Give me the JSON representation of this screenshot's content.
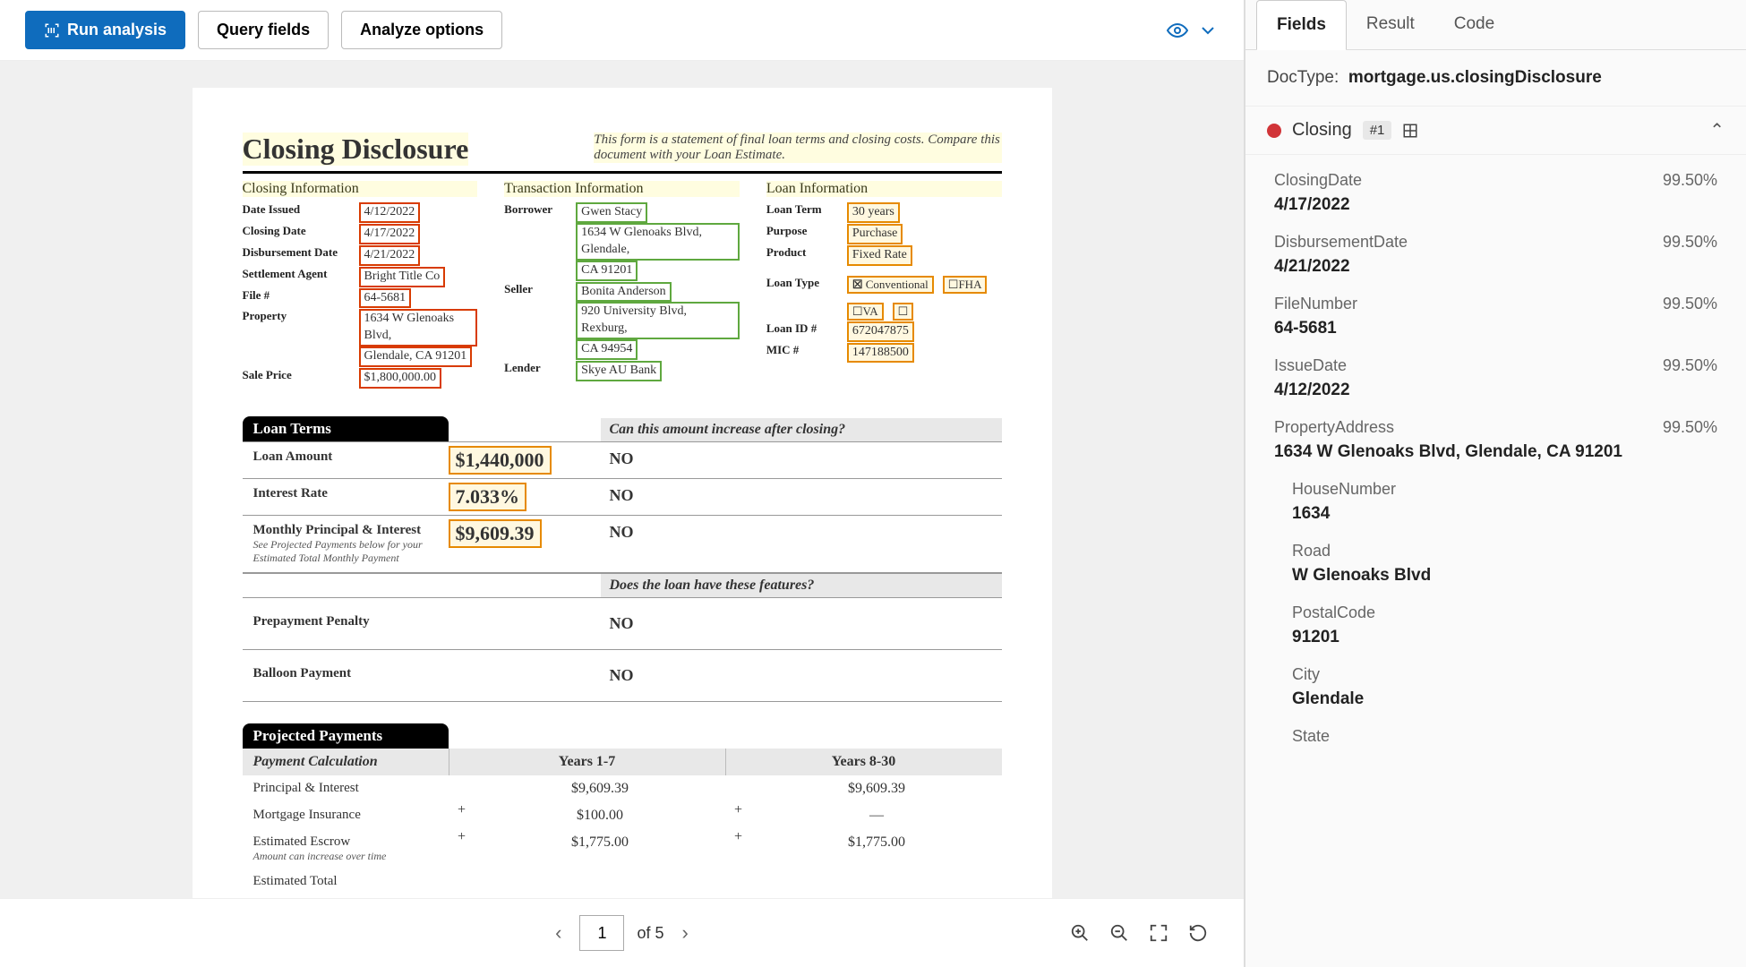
{
  "toolbar": {
    "run": "Run analysis",
    "query": "Query fields",
    "analyze": "Analyze options"
  },
  "doc": {
    "title": "Closing Disclosure",
    "subtitle": "This form is a statement of final loan terms and closing costs. Compare this document with your Loan Estimate.",
    "sections": {
      "closing": {
        "head": "Closing  Information",
        "date_issued_l": "Date Issued",
        "date_issued": "4/12/2022",
        "closing_date_l": "Closing Date",
        "closing_date": "4/17/2022",
        "disb_date_l": "Disbursement Date",
        "disb_date": "4/21/2022",
        "agent_l": "Settlement Agent",
        "agent": "Bright  Title Co",
        "file_l": "File #",
        "file": "64-5681",
        "property_l": "Property",
        "property1": "1634 W Glenoaks Blvd,",
        "property2": "Glendale, CA 91201",
        "sale_l": "Sale Price",
        "sale": "$1,800,000.00"
      },
      "transaction": {
        "head": "Transaction  Information",
        "borrower_l": "Borrower",
        "borrower": "Gwen Stacy",
        "borrower_addr1": "1634 W Glenoaks Blvd, Glendale,",
        "borrower_addr2": "CA 91201",
        "seller_l": "Seller",
        "seller": "Bonita Anderson",
        "seller_addr1": "920 University Blvd, Rexburg,",
        "seller_addr2": "CA 94954",
        "lender_l": "Lender",
        "lender": "Skye AU Bank"
      },
      "loan": {
        "head": "Loan  Information",
        "term_l": "Loan Term",
        "term": "30 years",
        "purpose_l": "Purpose",
        "purpose": "Purchase",
        "product_l": "Product",
        "product": "Fixed Rate",
        "type_l": "Loan Type",
        "type_conv": "Conventional",
        "type_fha": "FHA",
        "type_va": "VA",
        "id_l": "Loan ID #",
        "id": "672047875",
        "mic_l": "MIC #",
        "mic": "147188500"
      }
    },
    "loanterms": {
      "head": "Loan Terms",
      "q": "Can this amount increase after closing?",
      "rows": [
        {
          "label": "Loan Amount",
          "val": "$1,440,000",
          "ans": "NO"
        },
        {
          "label": "Interest Rate",
          "val": "7.033%",
          "ans": "NO"
        },
        {
          "label": "Monthly Principal & Interest",
          "sub": "See Projected Payments below for your Estimated Total Monthly Payment",
          "val": "$9,609.39",
          "ans": "NO"
        }
      ],
      "q2": "Does the loan have these features?",
      "rows2": [
        {
          "label": "Prepayment Penalty",
          "ans": "NO"
        },
        {
          "label": "Balloon Payment",
          "ans": "NO"
        }
      ]
    },
    "projected": {
      "head": "Projected Payments",
      "calc": "Payment Calculation",
      "col1": "Years 1-7",
      "col2": "Years 8-30",
      "rows": [
        {
          "label": "Principal & Interest",
          "v1": "$9,609.39",
          "v2": "$9,609.39",
          "plus": ""
        },
        {
          "label": "Mortgage Insurance",
          "v1": "$100.00",
          "v2": "—",
          "plus": "+"
        },
        {
          "label": "Estimated Escrow",
          "sub": "Amount can increase over time",
          "v1": "$1,775.00",
          "v2": "$1,775.00",
          "plus": "+"
        },
        {
          "label": "Estimated Total",
          "v1": "",
          "v2": "",
          "plus": ""
        }
      ]
    }
  },
  "pager": {
    "page": "1",
    "total": "of 5"
  },
  "tabs": {
    "fields": "Fields",
    "result": "Result",
    "code": "Code"
  },
  "doctype": {
    "label": "DocType:",
    "value": "mortgage.us.closingDisclosure"
  },
  "group": {
    "name": "Closing",
    "num": "#1"
  },
  "fields": [
    {
      "name": "ClosingDate",
      "conf": "99.50%",
      "val": "4/17/2022"
    },
    {
      "name": "DisbursementDate",
      "conf": "99.50%",
      "val": "4/21/2022"
    },
    {
      "name": "FileNumber",
      "conf": "99.50%",
      "val": "64-5681"
    },
    {
      "name": "IssueDate",
      "conf": "99.50%",
      "val": "4/12/2022"
    },
    {
      "name": "PropertyAddress",
      "conf": "99.50%",
      "val": "1634 W Glenoaks Blvd, Glendale, CA 91201"
    }
  ],
  "subfields": [
    {
      "name": "HouseNumber",
      "val": "1634"
    },
    {
      "name": "Road",
      "val": "W Glenoaks Blvd"
    },
    {
      "name": "PostalCode",
      "val": "91201"
    },
    {
      "name": "City",
      "val": "Glendale"
    },
    {
      "name": "State",
      "val": ""
    }
  ]
}
